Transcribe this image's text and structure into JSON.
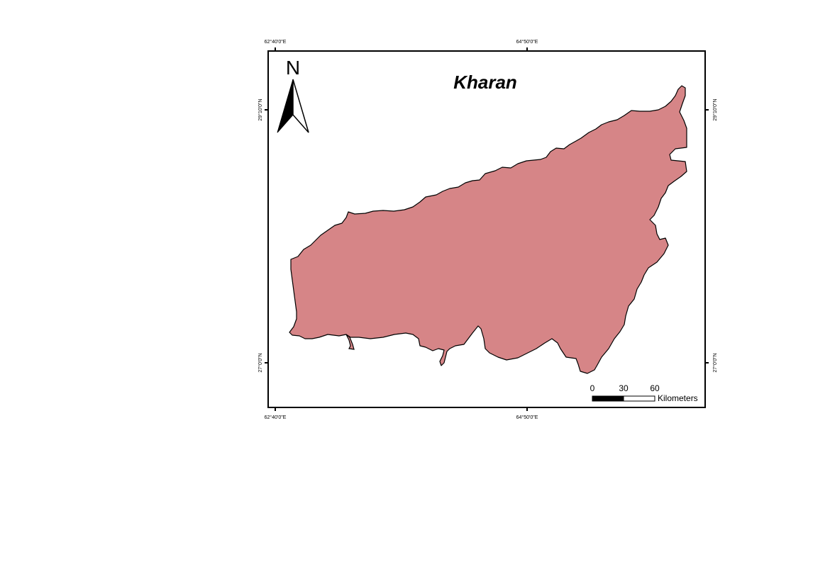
{
  "map": {
    "title": "Kharan",
    "region_fill": "#d68587",
    "frame_color": "#000000",
    "north_arrow": {
      "label": "N",
      "icon": "north-arrow-icon"
    },
    "graticule": {
      "top_left_lon": "62°40'0\"E",
      "top_right_lon": "64°50'0\"E",
      "bottom_left_lon": "62°40'0\"E",
      "bottom_right_lon": "64°50'0\"E",
      "left_upper_lat": "29°10'0\"N",
      "left_lower_lat": "27°0'0\"N",
      "right_upper_lat": "29°10'0\"N",
      "right_lower_lat": "27°0'0\"N"
    },
    "scale_bar": {
      "ticks": [
        "0",
        "30",
        "60"
      ],
      "unit": "Kilometers"
    }
  }
}
